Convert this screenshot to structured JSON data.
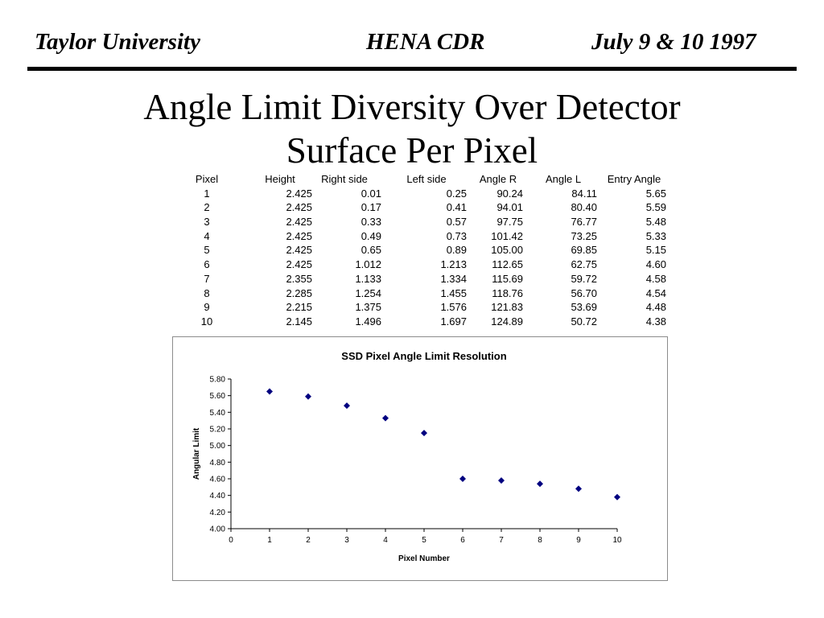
{
  "header": {
    "left": "Taylor University",
    "center": "HENA CDR",
    "right": "July 9 & 10 1997"
  },
  "title": {
    "line1": "Angle Limit Diversity Over Detector",
    "line2": "Surface Per Pixel"
  },
  "table": {
    "columns": [
      "Pixel",
      "Height",
      "Right side",
      "Left side",
      "Angle R",
      "Angle L",
      "Entry Angle"
    ],
    "rows": [
      [
        "1",
        "2.425",
        "0.01",
        "0.25",
        "90.24",
        "84.11",
        "5.65"
      ],
      [
        "2",
        "2.425",
        "0.17",
        "0.41",
        "94.01",
        "80.40",
        "5.59"
      ],
      [
        "3",
        "2.425",
        "0.33",
        "0.57",
        "97.75",
        "76.77",
        "5.48"
      ],
      [
        "4",
        "2.425",
        "0.49",
        "0.73",
        "101.42",
        "73.25",
        "5.33"
      ],
      [
        "5",
        "2.425",
        "0.65",
        "0.89",
        "105.00",
        "69.85",
        "5.15"
      ],
      [
        "6",
        "2.425",
        "1.012",
        "1.213",
        "112.65",
        "62.75",
        "4.60"
      ],
      [
        "7",
        "2.355",
        "1.133",
        "1.334",
        "115.69",
        "59.72",
        "4.58"
      ],
      [
        "8",
        "2.285",
        "1.254",
        "1.455",
        "118.76",
        "56.70",
        "4.54"
      ],
      [
        "9",
        "2.215",
        "1.375",
        "1.576",
        "121.83",
        "53.69",
        "4.48"
      ],
      [
        "10",
        "2.145",
        "1.496",
        "1.697",
        "124.89",
        "50.72",
        "4.38"
      ]
    ]
  },
  "chart_data": {
    "type": "scatter",
    "title": "SSD Pixel Angle Limit Resolution",
    "xlabel": "Pixel Number",
    "ylabel": "Angular Limit",
    "xlim": [
      0,
      10
    ],
    "ylim": [
      4.0,
      5.8
    ],
    "xticks": [
      "0",
      "1",
      "2",
      "3",
      "4",
      "5",
      "6",
      "7",
      "8",
      "9",
      "10"
    ],
    "yticks": [
      "4.00",
      "4.20",
      "4.40",
      "4.60",
      "4.80",
      "5.00",
      "5.20",
      "5.40",
      "5.60",
      "5.80"
    ],
    "grid": false,
    "legend": "none",
    "marker_color": "#000080",
    "x": [
      1,
      2,
      3,
      4,
      5,
      6,
      7,
      8,
      9,
      10
    ],
    "y": [
      5.65,
      5.59,
      5.48,
      5.33,
      5.15,
      4.6,
      4.58,
      4.54,
      4.48,
      4.38
    ]
  }
}
